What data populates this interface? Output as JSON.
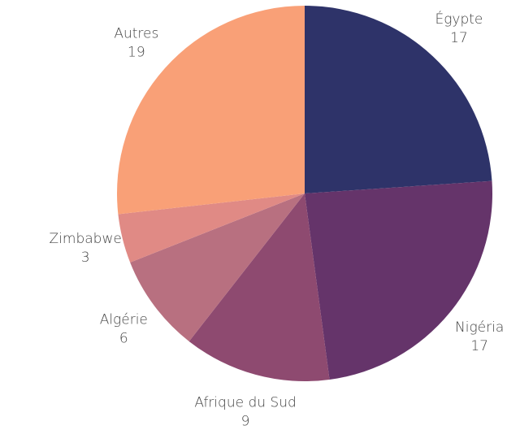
{
  "chart_data": {
    "type": "pie",
    "categories": [
      "Égypte",
      "Nigéria",
      "Afrique du Sud",
      "Algérie",
      "Zimbabwe",
      "Autres"
    ],
    "values": [
      17,
      17,
      9,
      6,
      3,
      19
    ],
    "colors": [
      "#2e3369",
      "#65346a",
      "#8e4a70",
      "#b87080",
      "#e08a85",
      "#f9a077"
    ]
  }
}
